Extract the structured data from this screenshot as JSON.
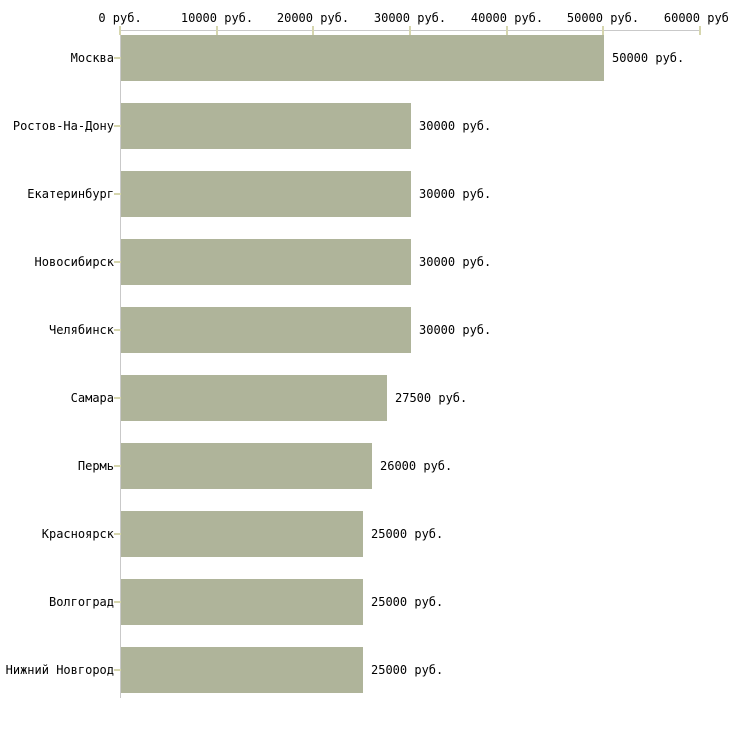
{
  "chart_data": {
    "type": "bar",
    "orientation": "horizontal",
    "title": "",
    "categories": [
      "Москва",
      "Ростов-На-Дону",
      "Екатеринбург",
      "Новосибирск",
      "Челябинск",
      "Самара",
      "Пермь",
      "Красноярск",
      "Волгоград",
      "Нижний Новгород"
    ],
    "values": [
      50000,
      30000,
      30000,
      30000,
      30000,
      27500,
      26000,
      25000,
      25000,
      25000
    ],
    "bar_labels": [
      "50000 руб.",
      "30000 руб.",
      "30000 руб.",
      "30000 руб.",
      "30000 руб.",
      "27500 руб.",
      "26000 руб.",
      "25000 руб.",
      "25000 руб.",
      "25000 руб."
    ],
    "unit": "руб.",
    "x_axis": {
      "position": "top",
      "min": 0,
      "max": 60000,
      "tick_step": 10000,
      "tick_values": [
        0,
        10000,
        20000,
        30000,
        40000,
        50000,
        60000
      ],
      "tick_labels": [
        "0 руб.",
        "10000 руб.",
        "20000 руб.",
        "30000 руб.",
        "40000 руб.",
        "50000 руб.",
        "60000 руб."
      ]
    },
    "grid": false,
    "legend": "none",
    "colors": {
      "bar": "#afb49a",
      "axis_line": "#c9c9c9",
      "tick_mark": "#d6d6ae",
      "label_text": "#000000",
      "background": "#ffffff"
    }
  }
}
